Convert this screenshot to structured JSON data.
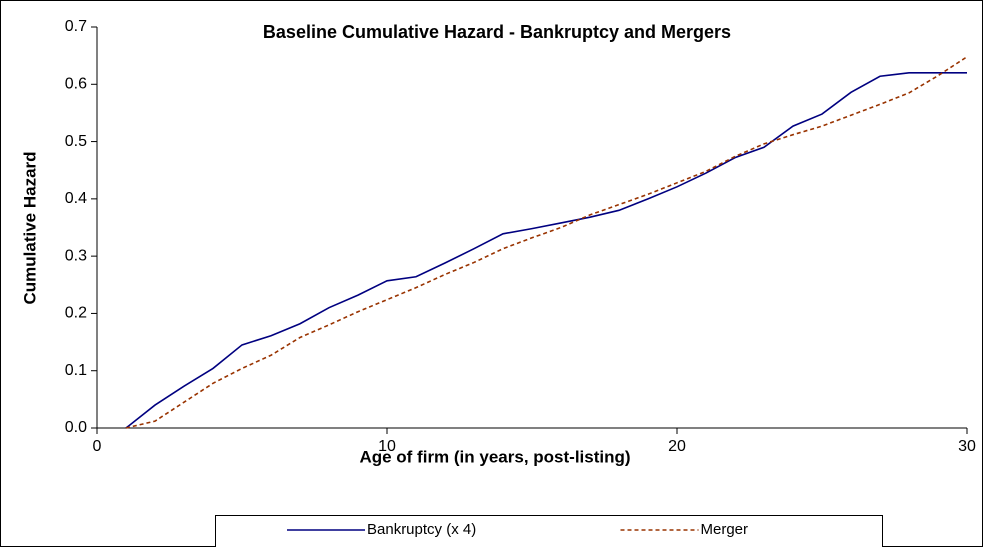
{
  "chart_data": {
    "type": "line",
    "title": "Baseline Cumulative Hazard - Bankruptcy and Mergers",
    "x_label": "Age of firm (in years, post-listing)",
    "y_label": "Cumulative Hazard",
    "x": [
      1,
      2,
      3,
      4,
      5,
      6,
      7,
      8,
      9,
      10,
      11,
      12,
      13,
      14,
      15,
      16,
      17,
      18,
      19,
      20,
      21,
      22,
      23,
      24,
      25,
      26,
      27,
      28,
      29,
      30
    ],
    "series": [
      {
        "name": "Bankruptcy (x 4)",
        "color": "#000080",
        "dash": "solid",
        "values": [
          0.0,
          0.04,
          0.073,
          0.104,
          0.145,
          0.161,
          0.182,
          0.21,
          0.232,
          0.257,
          0.264,
          0.288,
          0.313,
          0.339,
          0.348,
          0.358,
          0.368,
          0.38,
          0.4,
          0.421,
          0.445,
          0.472,
          0.49,
          0.527,
          0.548,
          0.586,
          0.614,
          0.62,
          0.62,
          0.62
        ]
      },
      {
        "name": "Merger",
        "color": "#993300",
        "dash": "dotted",
        "values": [
          0.0,
          0.012,
          0.045,
          0.078,
          0.104,
          0.127,
          0.158,
          0.18,
          0.203,
          0.224,
          0.245,
          0.268,
          0.289,
          0.313,
          0.332,
          0.35,
          0.372,
          0.39,
          0.408,
          0.428,
          0.448,
          0.474,
          0.496,
          0.512,
          0.527,
          0.546,
          0.565,
          0.585,
          0.615,
          0.648
        ]
      }
    ],
    "xlim": [
      0,
      30
    ],
    "xticks": [
      0,
      10,
      20,
      30
    ],
    "ylim": [
      0,
      0.7
    ],
    "yticks": [
      {
        "value": 0,
        "label": "0.0"
      },
      0.1,
      0.2,
      0.3,
      0.4,
      0.5,
      0.6,
      0.7
    ],
    "grid": false,
    "legend": "bottom"
  }
}
